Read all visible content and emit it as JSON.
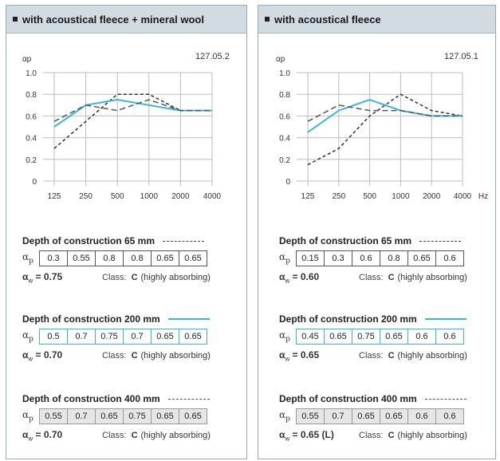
{
  "chart_data": [
    {
      "type": "line",
      "title": "with acoustical fleece + mineral wool",
      "code": "127.05.2",
      "ylabel": "αp",
      "xlabel": "",
      "categories": [
        "125",
        "250",
        "500",
        "1000",
        "2000",
        "4000"
      ],
      "ylim": [
        0,
        1.0
      ],
      "yticks": [
        "0",
        "0.2",
        "0.4",
        "0.6",
        "0.8",
        "1.0"
      ],
      "series": [
        {
          "name": "Depth of construction 65 mm",
          "style": "dashed-short",
          "color": "#333333",
          "values": [
            0.3,
            0.55,
            0.8,
            0.8,
            0.65,
            0.65
          ],
          "display": [
            "0.3",
            "0.55",
            "0.8",
            "0.8",
            "0.65",
            "0.65"
          ]
        },
        {
          "name": "Depth of construction 200 mm",
          "style": "solid",
          "color": "#3ab6d6",
          "values": [
            0.5,
            0.7,
            0.75,
            0.7,
            0.65,
            0.65
          ],
          "display": [
            "0.5",
            "0.7",
            "0.75",
            "0.7",
            "0.65",
            "0.65"
          ]
        },
        {
          "name": "Depth of construction 400 mm",
          "style": "dashed-long",
          "color": "#555555",
          "values": [
            0.55,
            0.7,
            0.65,
            0.75,
            0.65,
            0.65
          ],
          "display": [
            "0.55",
            "0.7",
            "0.65",
            "0.75",
            "0.65",
            "0.65"
          ]
        }
      ],
      "ratings": [
        {
          "aw": "= 0.75",
          "class_label": "Class:",
          "class": "C",
          "class_desc": "(highly absorbing)"
        },
        {
          "aw": "= 0.70",
          "class_label": "Class:",
          "class": "C",
          "class_desc": "(highly absorbing)"
        },
        {
          "aw": "= 0.70",
          "class_label": "Class:",
          "class": "C",
          "class_desc": "(highly absorbing)"
        }
      ]
    },
    {
      "type": "line",
      "title": "with acoustical fleece",
      "code": "127.05.1",
      "ylabel": "αp",
      "xlabel": "Hz",
      "categories": [
        "125",
        "250",
        "500",
        "1000",
        "2000",
        "4000"
      ],
      "ylim": [
        0,
        1.0
      ],
      "yticks": [
        "0",
        "0.2",
        "0.4",
        "0.6",
        "0.8",
        "1.0"
      ],
      "series": [
        {
          "name": "Depth of construction 65 mm",
          "style": "dashed-short",
          "color": "#333333",
          "values": [
            0.15,
            0.3,
            0.6,
            0.8,
            0.65,
            0.6
          ],
          "display": [
            "0.15",
            "0.3",
            "0.6",
            "0.8",
            "0.65",
            "0.6"
          ]
        },
        {
          "name": "Depth of construction 200 mm",
          "style": "solid",
          "color": "#3ab6d6",
          "values": [
            0.45,
            0.65,
            0.75,
            0.65,
            0.6,
            0.6
          ],
          "display": [
            "0.45",
            "0.65",
            "0.75",
            "0.65",
            "0.6",
            "0.6"
          ]
        },
        {
          "name": "Depth of construction 400 mm",
          "style": "dashed-long",
          "color": "#555555",
          "values": [
            0.55,
            0.7,
            0.65,
            0.65,
            0.6,
            0.6
          ],
          "display": [
            "0.55",
            "0.7",
            "0.65",
            "0.65",
            "0.6",
            "0.6"
          ]
        }
      ],
      "ratings": [
        {
          "aw": "= 0.60",
          "class_label": "Class:",
          "class": "C",
          "class_desc": "(highly absorbing)"
        },
        {
          "aw": "= 0.65",
          "class_label": "Class:",
          "class": "C",
          "class_desc": "(highly absorbing)"
        },
        {
          "aw": "= 0.65 (L)",
          "class_label": "Class:",
          "class": "C",
          "class_desc": "(highly absorbing)"
        }
      ]
    }
  ]
}
